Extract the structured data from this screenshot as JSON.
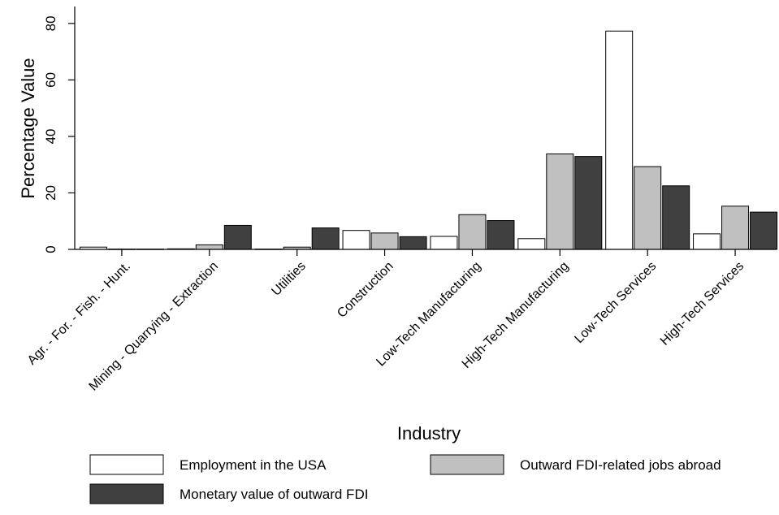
{
  "chart_data": {
    "type": "bar",
    "xlabel": "Industry",
    "ylabel": "Percentage Value",
    "ylim": [
      0,
      86
    ],
    "yticks": [
      0,
      20,
      40,
      60,
      80
    ],
    "grid": false,
    "legend_position": "bottom",
    "categories": [
      "Agr. - For. - Fish. - Hunt.",
      "Mining - Quarrying - Extraction",
      "Utilities",
      "Construction",
      "Low-Tech Manufacturing",
      "High-Tech Manufacturing",
      "Low-Tech Services",
      "High-Tech Services"
    ],
    "series": [
      {
        "name": "Employment in the USA",
        "color": "#ffffff",
        "values": [
          0.8,
          0.2,
          0.1,
          6.7,
          4.6,
          3.8,
          77.3,
          5.5
        ]
      },
      {
        "name": "Outward FDI-related jobs abroad",
        "color": "#c0c0c0",
        "values": [
          0.1,
          1.6,
          0.8,
          5.8,
          12.3,
          33.8,
          29.3,
          15.3
        ]
      },
      {
        "name": "Monetary value of outward FDI",
        "color": "#404040",
        "values": [
          0.1,
          8.5,
          7.6,
          4.5,
          10.2,
          32.9,
          22.5,
          13.2
        ]
      }
    ]
  }
}
